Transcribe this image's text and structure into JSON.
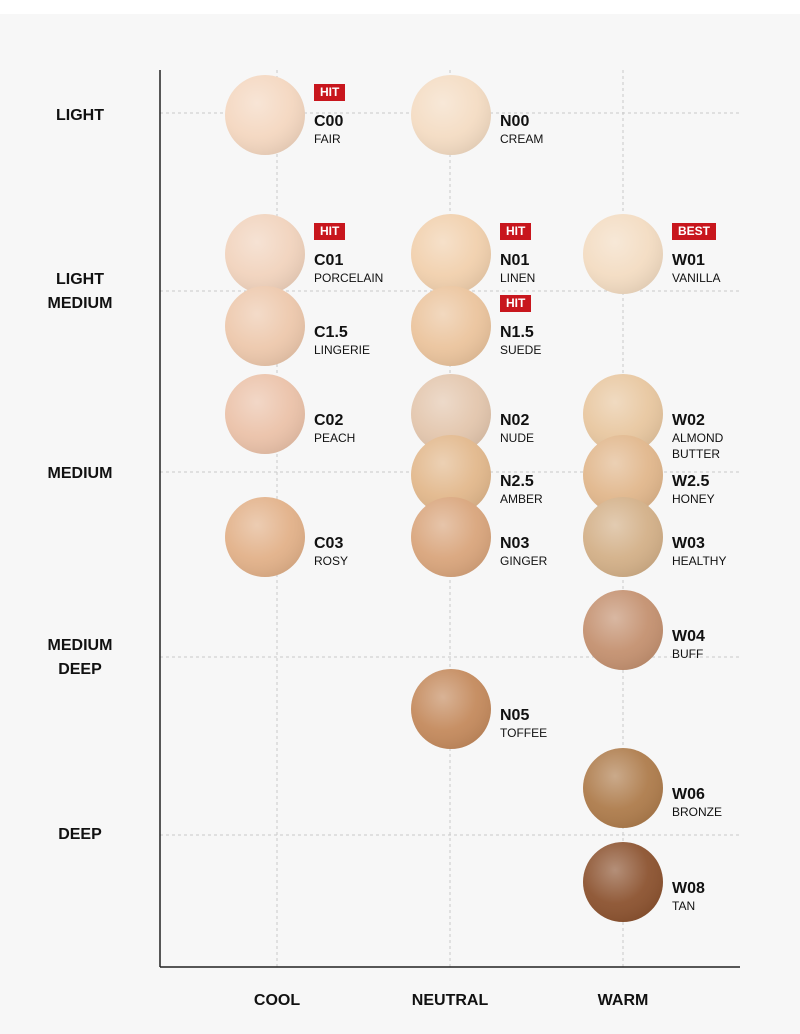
{
  "depths": [
    "LIGHT",
    "LIGHT MEDIUM",
    "MEDIUM",
    "MEDIUM DEEP",
    "DEEP"
  ],
  "undertones": [
    {
      "label": "COOL",
      "swatches": [
        {
          "badge": "HIT",
          "code": "C00",
          "name": "FAIR",
          "color": "#f4d7c0"
        },
        {
          "badge": "HIT",
          "code": "C01",
          "name": "PORCELAIN",
          "color": "#f1d3bd"
        },
        {
          "code": "C1.5",
          "name": "LINGERIE",
          "color": "#edc8ac"
        },
        {
          "code": "C02",
          "name": "PEACH",
          "color": "#ebc2a9"
        },
        {
          "code": "C03",
          "name": "ROSY",
          "color": "#e2b189"
        }
      ]
    },
    {
      "label": "NEUTRAL",
      "swatches": [
        {
          "code": "N00",
          "name": "CREAM",
          "color": "#f4dcc3"
        },
        {
          "badge": "HIT",
          "code": "N01",
          "name": "LINEN",
          "color": "#f1d0ad"
        },
        {
          "badge": "HIT",
          "code": "N1.5",
          "name": "SUEDE",
          "color": "#ebc49d"
        },
        {
          "code": "N02",
          "name": "NUDE",
          "color": "#e3c6ad"
        },
        {
          "code": "N2.5",
          "name": "AMBER",
          "color": "#e2b88c"
        },
        {
          "code": "N03",
          "name": "GINGER",
          "color": "#d9a57c"
        },
        {
          "code": "N05",
          "name": "TOFFEE",
          "color": "#c48a5d"
        }
      ]
    },
    {
      "label": "WARM",
      "swatches": [
        {
          "badge": "BEST",
          "code": "W01",
          "name": "VANILLA",
          "color": "#f3dcc2"
        },
        {
          "code": "W02",
          "name": "ALMOND BUTTER",
          "color": "#e8c7a0"
        },
        {
          "code": "W2.5",
          "name": "HONEY",
          "color": "#e1b78c"
        },
        {
          "code": "W03",
          "name": "HEALTHY",
          "color": "#d3b088"
        },
        {
          "code": "W04",
          "name": "BUFF",
          "color": "#c49170"
        },
        {
          "code": "W06",
          "name": "BRONZE",
          "color": "#ae7c4c"
        },
        {
          "code": "W08",
          "name": "TAN",
          "color": "#8c5330"
        }
      ]
    }
  ]
}
